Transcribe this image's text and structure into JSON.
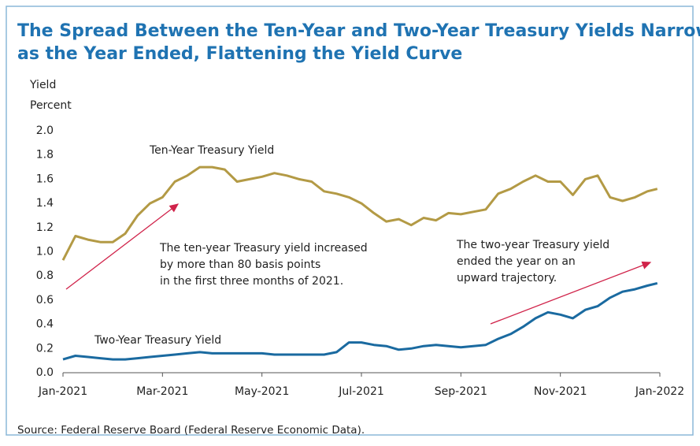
{
  "chart_data": {
    "type": "line",
    "title": [
      "The Spread Between the Ten-Year and Two-Year Treasury Yields Narrowed",
      "as the Year Ended, Flattening the Yield Curve"
    ],
    "ylabel": [
      "Yield",
      "Percent"
    ],
    "source": "Source: Federal Reserve Board (Federal Reserve Economic Data).",
    "x": [
      0,
      0.25,
      0.5,
      0.75,
      1,
      1.25,
      1.5,
      1.75,
      2,
      2.25,
      2.5,
      2.75,
      3,
      3.25,
      3.5,
      3.75,
      4,
      4.25,
      4.5,
      4.75,
      5,
      5.25,
      5.5,
      5.75,
      6,
      6.25,
      6.5,
      6.75,
      7,
      7.25,
      7.5,
      7.75,
      8,
      8.25,
      8.5,
      8.75,
      9,
      9.25,
      9.5,
      9.75,
      10,
      10.25,
      10.5,
      10.75,
      11,
      11.25,
      11.5,
      11.75,
      11.95
    ],
    "xlim": [
      0,
      12
    ],
    "xticks": [
      {
        "value": 0,
        "label": "Jan-2021"
      },
      {
        "value": 2,
        "label": "Mar-2021"
      },
      {
        "value": 4,
        "label": "May-2021"
      },
      {
        "value": 6,
        "label": "Jul-2021"
      },
      {
        "value": 8,
        "label": "Sep-2021"
      },
      {
        "value": 10,
        "label": "Nov-2021"
      },
      {
        "value": 12,
        "label": "Jan-2022"
      }
    ],
    "ylim": [
      0,
      2
    ],
    "yticks": [
      {
        "value": 0,
        "label": "0.0"
      },
      0.2,
      0.4,
      0.6,
      0.8,
      {
        "value": 1,
        "label": "1.0"
      },
      1.2,
      1.4,
      1.6,
      1.8,
      {
        "value": 2,
        "label": "2.0"
      }
    ],
    "grid": false,
    "series": [
      {
        "name": "Ten-Year Treasury Yield",
        "color": "#b39a45",
        "values": [
          0.93,
          1.13,
          1.1,
          1.08,
          1.08,
          1.15,
          1.3,
          1.4,
          1.45,
          1.58,
          1.63,
          1.7,
          1.7,
          1.68,
          1.58,
          1.6,
          1.62,
          1.65,
          1.63,
          1.6,
          1.58,
          1.5,
          1.48,
          1.45,
          1.4,
          1.32,
          1.25,
          1.27,
          1.22,
          1.28,
          1.26,
          1.32,
          1.31,
          1.33,
          1.35,
          1.48,
          1.52,
          1.58,
          1.63,
          1.58,
          1.58,
          1.47,
          1.6,
          1.63,
          1.45,
          1.42,
          1.45,
          1.5,
          1.52
        ]
      },
      {
        "name": "Two-Year Treasury Yield",
        "color": "#1a6aa0",
        "values": [
          0.11,
          0.14,
          0.13,
          0.12,
          0.11,
          0.11,
          0.12,
          0.13,
          0.14,
          0.15,
          0.16,
          0.17,
          0.16,
          0.16,
          0.16,
          0.16,
          0.16,
          0.15,
          0.15,
          0.15,
          0.15,
          0.15,
          0.17,
          0.25,
          0.25,
          0.23,
          0.22,
          0.19,
          0.2,
          0.22,
          0.23,
          0.22,
          0.21,
          0.22,
          0.23,
          0.28,
          0.32,
          0.38,
          0.45,
          0.5,
          0.48,
          0.45,
          0.52,
          0.55,
          0.62,
          0.67,
          0.69,
          0.72,
          0.74
        ]
      }
    ],
    "annotations": [
      {
        "text": [
          "The ten-year Treasury yield increased",
          "by more than 80 basis points",
          "in the first three months of 2021."
        ]
      },
      {
        "text": [
          "The two-year Treasury yield",
          "ended the year on an",
          "upward trajectory."
        ]
      }
    ]
  }
}
